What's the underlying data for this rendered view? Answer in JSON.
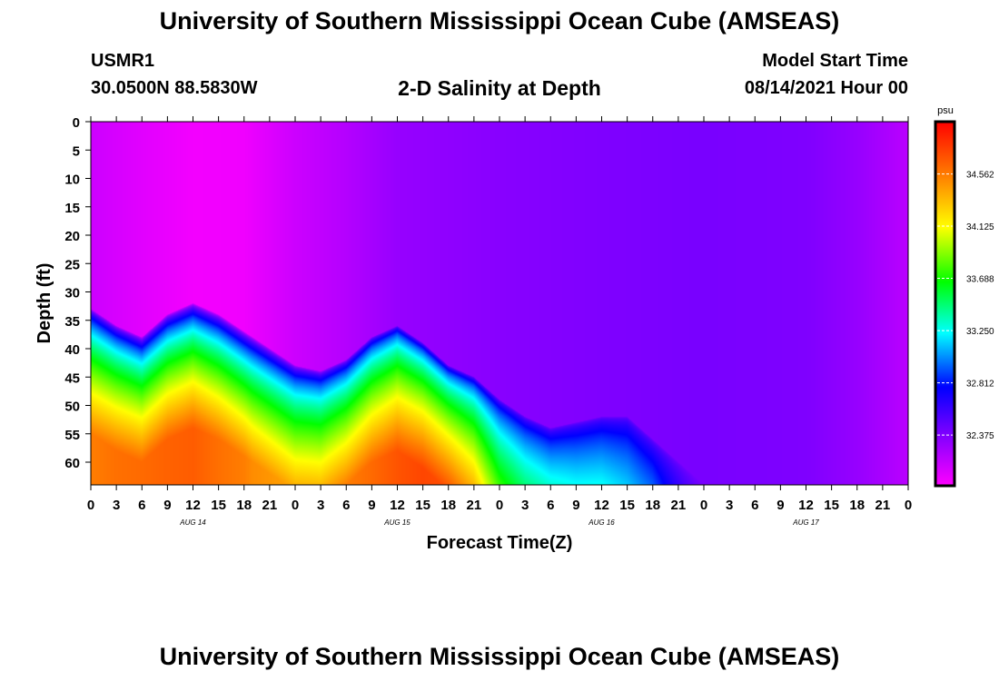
{
  "header": {
    "title": "University of Southern Mississippi Ocean Cube (AMSEAS)",
    "station": "USMR1",
    "coords": "30.0500N  88.5830W",
    "subtitle": "2-D Salinity at Depth",
    "model_start_label": "Model Start Time",
    "model_start_value": "08/14/2021 Hour 00"
  },
  "footer": {
    "title": "University of Southern Mississippi Ocean Cube (AMSEAS)"
  },
  "chart_data": {
    "type": "heatmap",
    "title": "2-D Salinity at Depth",
    "xlabel": "Forecast Time(Z)",
    "ylabel": "Depth (ft)",
    "x_tick_labels": [
      "0",
      "3",
      "6",
      "9",
      "12",
      "15",
      "18",
      "21",
      "0",
      "3",
      "6",
      "9",
      "12",
      "15",
      "18",
      "21",
      "0",
      "3",
      "6",
      "9",
      "12",
      "15",
      "18",
      "21",
      "0",
      "3",
      "6",
      "9",
      "12",
      "15",
      "18",
      "21",
      "0"
    ],
    "date_labels": [
      "AUG 14",
      "AUG 15",
      "AUG 16",
      "AUG 17"
    ],
    "x_range_hours": [
      0,
      96
    ],
    "y_ticks": [
      0,
      5,
      10,
      15,
      20,
      25,
      30,
      35,
      40,
      45,
      50,
      55,
      60
    ],
    "y_range_ft": [
      0,
      64
    ],
    "y_inverted": true,
    "colorbar": {
      "unit": "psu",
      "ticks": [
        "34.562",
        "34.125",
        "33.688",
        "33.250",
        "32.812",
        "32.375"
      ],
      "range": [
        31.95,
        35.0
      ]
    },
    "halocline_depth_ft": [
      [
        0,
        33
      ],
      [
        3,
        36
      ],
      [
        6,
        38
      ],
      [
        9,
        34
      ],
      [
        12,
        32
      ],
      [
        15,
        34
      ],
      [
        18,
        37
      ],
      [
        21,
        40
      ],
      [
        24,
        43
      ],
      [
        27,
        44
      ],
      [
        30,
        42
      ],
      [
        33,
        38
      ],
      [
        36,
        36
      ],
      [
        39,
        39
      ],
      [
        42,
        43
      ],
      [
        45,
        45
      ],
      [
        48,
        49
      ],
      [
        51,
        52
      ],
      [
        54,
        54
      ],
      [
        57,
        53
      ],
      [
        60,
        52
      ],
      [
        63,
        52
      ],
      [
        66,
        56
      ],
      [
        69,
        60
      ],
      [
        72,
        64
      ]
    ],
    "bottom_salinity_psu": [
      [
        0,
        34.55
      ],
      [
        3,
        34.6
      ],
      [
        6,
        34.62
      ],
      [
        9,
        34.65
      ],
      [
        12,
        34.67
      ],
      [
        15,
        34.6
      ],
      [
        18,
        34.55
      ],
      [
        19,
        34.5
      ],
      [
        24,
        34.42
      ],
      [
        27,
        34.45
      ],
      [
        30,
        34.55
      ],
      [
        33,
        34.62
      ],
      [
        36,
        34.7
      ],
      [
        39,
        34.75
      ],
      [
        42,
        34.72
      ],
      [
        45,
        34.5
      ],
      [
        48,
        34.05
      ],
      [
        51,
        33.85
      ],
      [
        54,
        33.75
      ],
      [
        57,
        33.6
      ],
      [
        60,
        33.55
      ],
      [
        63,
        33.4
      ],
      [
        66,
        33.3
      ],
      [
        69,
        32.9
      ],
      [
        72,
        32.5
      ],
      [
        75,
        32.42
      ],
      [
        96,
        32.4
      ]
    ],
    "surface_salinity_psu": [
      [
        0,
        32.12
      ],
      [
        6,
        32.05
      ],
      [
        12,
        31.99
      ],
      [
        18,
        32.0
      ],
      [
        24,
        32.12
      ],
      [
        30,
        32.2
      ],
      [
        36,
        32.3
      ],
      [
        48,
        32.35
      ],
      [
        60,
        32.38
      ],
      [
        72,
        32.4
      ],
      [
        84,
        32.38
      ],
      [
        90,
        32.3
      ],
      [
        96,
        32.18
      ]
    ]
  }
}
